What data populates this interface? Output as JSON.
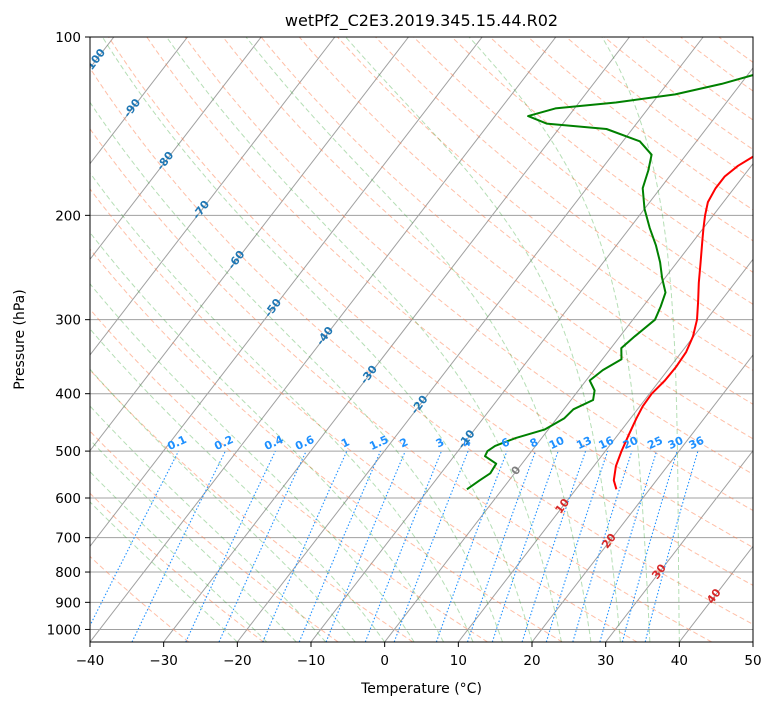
{
  "chart_data": {
    "type": "skew-t log-p",
    "title": "wetPf2_C2E3.2019.345.15.44.R02",
    "xlabel": "Temperature (°C)",
    "ylabel": "Pressure (hPa)",
    "xlim": [
      -40,
      50
    ],
    "ylim": [
      1050,
      100
    ],
    "y_scale": "log",
    "grid": true,
    "x_ticks": [
      -40,
      -30,
      -20,
      -10,
      0,
      10,
      20,
      30,
      40,
      50
    ],
    "x_tick_labels": [
      "−40",
      "−30",
      "−20",
      "−10",
      "0",
      "10",
      "20",
      "30",
      "40",
      "50"
    ],
    "y_ticks": [
      100,
      200,
      300,
      400,
      500,
      600,
      700,
      800,
      900,
      1000
    ],
    "y_tick_labels": [
      "100",
      "200",
      "300",
      "400",
      "500",
      "600",
      "700",
      "800",
      "900",
      "1000"
    ],
    "isotherm_labels": [
      "-100",
      "-90",
      "-80",
      "-70",
      "-60",
      "-50",
      "-40",
      "-30",
      "-20",
      "-10",
      "0",
      "10",
      "20",
      "30",
      "40"
    ],
    "isotherm_label_positions": [
      {
        "t": -100,
        "p": 110
      },
      {
        "t": -90,
        "p": 132
      },
      {
        "t": -80,
        "p": 162
      },
      {
        "t": -70,
        "p": 196
      },
      {
        "t": -60,
        "p": 238
      },
      {
        "t": -50,
        "p": 287
      },
      {
        "t": -40,
        "p": 320
      },
      {
        "t": -30,
        "p": 372
      },
      {
        "t": -20,
        "p": 418
      },
      {
        "t": -10,
        "p": 478
      },
      {
        "t": 0,
        "p": 540
      },
      {
        "t": 10,
        "p": 620
      },
      {
        "t": 20,
        "p": 710
      },
      {
        "t": 30,
        "p": 800
      },
      {
        "t": 40,
        "p": 880
      }
    ],
    "mixing_ratio_labels": [
      "0.1",
      "0.2",
      "0.4",
      "0.6",
      "1",
      "1.5",
      "2",
      "3",
      "4",
      "6",
      "8",
      "10",
      "13",
      "16",
      "20",
      "25",
      "30",
      "36"
    ],
    "mixing_ratio_values": [
      0.1,
      0.2,
      0.4,
      0.6,
      1,
      1.5,
      2,
      3,
      4,
      6,
      8,
      10,
      13,
      16,
      20,
      25,
      30,
      36
    ],
    "colors": {
      "temperature": "#ff0000",
      "dewpoint": "#008000",
      "isotherm_label": "#1f77b4",
      "warm_isotherm_label": "#d62728",
      "zero_isotherm_label": "#7f7f7f",
      "mixing_ratio": "#1e90ff",
      "dry_adiabat": "#ff7f50",
      "moist_adiabat": "#2ca02c",
      "skewed_grid": "#a0a0a0",
      "boundary_curve": "#c8a070"
    },
    "series": [
      {
        "name": "",
        "role": "temperature",
        "points": [
          {
            "p": 580,
            "t": 15.5
          },
          {
            "p": 560,
            "t": 14.2
          },
          {
            "p": 530,
            "t": 13.0
          },
          {
            "p": 500,
            "t": 12.2
          },
          {
            "p": 470,
            "t": 11.5
          },
          {
            "p": 440,
            "t": 10.8
          },
          {
            "p": 420,
            "t": 10.4
          },
          {
            "p": 400,
            "t": 10.3
          },
          {
            "p": 380,
            "t": 10.7
          },
          {
            "p": 360,
            "t": 10.8
          },
          {
            "p": 340,
            "t": 10.6
          },
          {
            "p": 320,
            "t": 9.9
          },
          {
            "p": 300,
            "t": 8.7
          },
          {
            "p": 280,
            "t": 7.0
          },
          {
            "p": 260,
            "t": 5.1
          },
          {
            "p": 240,
            "t": 3.2
          },
          {
            "p": 220,
            "t": 1.1
          },
          {
            "p": 210,
            "t": 0.0
          },
          {
            "p": 200,
            "t": -1.1
          },
          {
            "p": 190,
            "t": -2.1
          },
          {
            "p": 180,
            "t": -2.5
          },
          {
            "p": 172,
            "t": -2.5
          },
          {
            "p": 165,
            "t": -1.8
          },
          {
            "p": 158,
            "t": -0.5
          },
          {
            "p": 150,
            "t": 1.5
          },
          {
            "p": 142,
            "t": 4.1
          },
          {
            "p": 135,
            "t": 6.7
          },
          {
            "p": 128,
            "t": 9.7
          },
          {
            "p": 120,
            "t": 12.7
          },
          {
            "p": 112,
            "t": 16.5
          },
          {
            "p": 106,
            "t": 19.1
          },
          {
            "p": 100,
            "t": 21.8
          }
        ]
      },
      {
        "name": "",
        "role": "dewpoint",
        "points": [
          {
            "p": 580,
            "t": -4.8
          },
          {
            "p": 560,
            "t": -4.0
          },
          {
            "p": 545,
            "t": -3.3
          },
          {
            "p": 525,
            "t": -3.5
          },
          {
            "p": 510,
            "t": -5.8
          },
          {
            "p": 500,
            "t": -6.0
          },
          {
            "p": 490,
            "t": -5.5
          },
          {
            "p": 475,
            "t": -3.5
          },
          {
            "p": 460,
            "t": -0.5
          },
          {
            "p": 440,
            "t": 1.0
          },
          {
            "p": 425,
            "t": 1.3
          },
          {
            "p": 410,
            "t": 3.0
          },
          {
            "p": 395,
            "t": 2.2
          },
          {
            "p": 380,
            "t": 0.5
          },
          {
            "p": 365,
            "t": 1.2
          },
          {
            "p": 350,
            "t": 2.6
          },
          {
            "p": 335,
            "t": 1.4
          },
          {
            "p": 320,
            "t": 2.0
          },
          {
            "p": 300,
            "t": 3.0
          },
          {
            "p": 285,
            "t": 2.4
          },
          {
            "p": 270,
            "t": 1.6
          },
          {
            "p": 255,
            "t": -0.4
          },
          {
            "p": 240,
            "t": -2.3
          },
          {
            "p": 225,
            "t": -4.6
          },
          {
            "p": 210,
            "t": -7.3
          },
          {
            "p": 195,
            "t": -10.0
          },
          {
            "p": 180,
            "t": -12.4
          },
          {
            "p": 168,
            "t": -13.5
          },
          {
            "p": 158,
            "t": -14.7
          },
          {
            "p": 150,
            "t": -17.7
          },
          {
            "p": 143,
            "t": -23.5
          },
          {
            "p": 140,
            "t": -32.2
          },
          {
            "p": 136,
            "t": -35.5
          },
          {
            "p": 132,
            "t": -32.6
          },
          {
            "p": 129,
            "t": -25.0
          },
          {
            "p": 125,
            "t": -17.8
          },
          {
            "p": 120,
            "t": -12.6
          },
          {
            "p": 115,
            "t": -8.5
          },
          {
            "p": 110,
            "t": -4.6
          },
          {
            "p": 106,
            "t": -1.7
          },
          {
            "p": 103,
            "t": -0.1
          },
          {
            "p": 100,
            "t": 0.9
          }
        ]
      }
    ]
  }
}
